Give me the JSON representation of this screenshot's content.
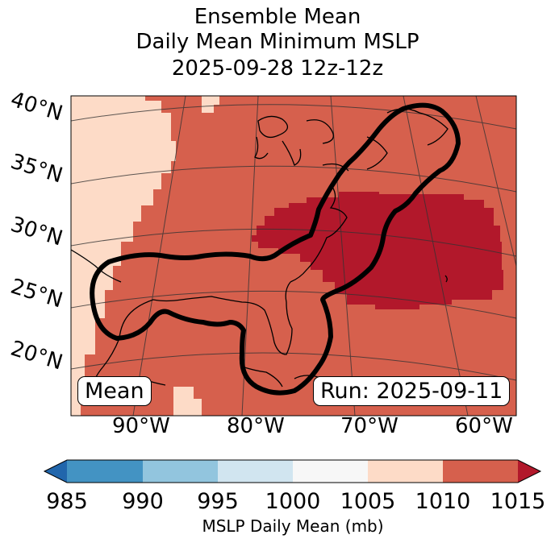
{
  "title": {
    "line1": "Ensemble Mean",
    "line2": "Daily Mean Minimum MSLP",
    "line3": "2025-09-28 12z-12z"
  },
  "map": {
    "lat_labels": [
      "40°N",
      "35°N",
      "30°N",
      "25°N",
      "20°N"
    ],
    "lon_labels": [
      "90°W",
      "80°W",
      "70°W",
      "60°W"
    ],
    "mean_label": "Mean",
    "run_label": "Run: 2025-09-11",
    "layers": [
      "1005-1010 mb",
      "1010-1015 mb",
      "greater than 1015 mb",
      "ensemble contour",
      "coastlines",
      "graticule"
    ]
  },
  "colorbar": {
    "ticks": [
      "985",
      "990",
      "995",
      "1000",
      "1005",
      "1010",
      "1015"
    ],
    "label": "MSLP Daily Mean (mb)",
    "colors": [
      "#2166ac",
      "#4393c3",
      "#92c5de",
      "#d1e5f0",
      "#f7f7f7",
      "#fddbc7",
      "#d6604d",
      "#b2182b"
    ]
  },
  "colors": {
    "light": "#fddbc7",
    "medium": "#d6604d",
    "dark": "#b2182b",
    "contour": "#000000"
  }
}
